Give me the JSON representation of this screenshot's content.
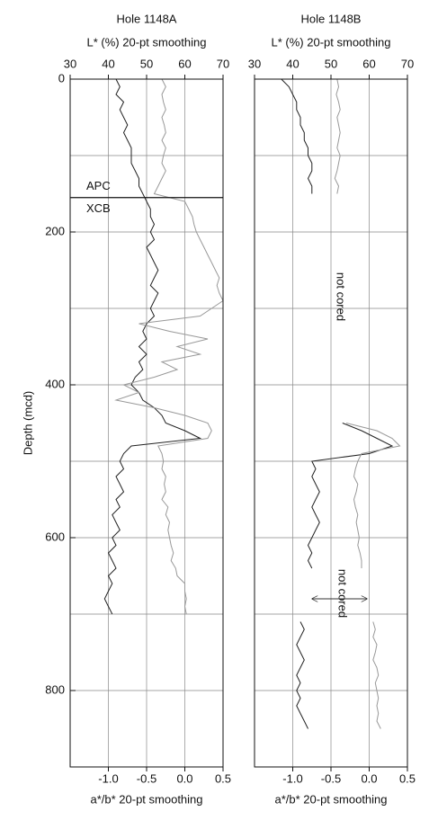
{
  "chart_data": [
    {
      "type": "line",
      "title": "Hole 1148A",
      "xlabel": "L* (%) 20-pt smoothing",
      "x2label": "a*/b* 20-pt smoothing",
      "ylabel": "Depth (mcd)",
      "xlim": [
        30,
        70
      ],
      "xticks": [
        30,
        40,
        50,
        60,
        70
      ],
      "x2lim": [
        -1.5,
        0.5
      ],
      "x2ticks": [
        {
          "value": -1,
          "label": "-1.0"
        },
        -0.5,
        {
          "value": 0,
          "label": "0.0"
        },
        0.5
      ],
      "ylim": [
        0,
        900
      ],
      "inverted": true,
      "yticks": [
        0,
        200,
        400,
        600,
        800
      ],
      "ygrid": [
        100,
        200,
        300,
        400,
        500,
        600,
        700,
        800
      ],
      "xgrid": [
        40,
        50,
        60
      ],
      "annotations": [
        "APC",
        "XCB"
      ],
      "boundary_depth": 155,
      "depth": [
        0,
        10,
        20,
        30,
        40,
        50,
        60,
        70,
        80,
        90,
        100,
        110,
        120,
        130,
        140,
        150,
        160,
        170,
        180,
        190,
        200,
        210,
        220,
        230,
        240,
        250,
        260,
        270,
        280,
        290,
        300,
        310,
        320,
        330,
        340,
        350,
        360,
        370,
        380,
        390,
        400,
        410,
        420,
        430,
        440,
        450,
        460,
        470,
        480,
        490,
        500,
        510,
        520,
        530,
        540,
        550,
        560,
        570,
        580,
        590,
        600,
        610,
        620,
        630,
        640,
        650,
        660,
        670,
        680,
        690,
        700
      ],
      "series": [
        {
          "color": "#222222",
          "axis": "x",
          "values": [
            42,
            43,
            42,
            44,
            43,
            44,
            45,
            44,
            45,
            46,
            46,
            46,
            47,
            48,
            48,
            49,
            50,
            51,
            51,
            52,
            51,
            52,
            50,
            51,
            52,
            53,
            52,
            51,
            53,
            52,
            51,
            52,
            50,
            49,
            50,
            48,
            50,
            48,
            49,
            47,
            46,
            48,
            49,
            52,
            54,
            55,
            60,
            64,
            46,
            44,
            43,
            44,
            42,
            43,
            44,
            42,
            43,
            41,
            42,
            43,
            41,
            42,
            40,
            41,
            42,
            40,
            41,
            40,
            39,
            40,
            41
          ]
        },
        {
          "color": "#999999",
          "axis": "x2",
          "values": [
            -0.3,
            -0.25,
            -0.3,
            -0.28,
            -0.25,
            -0.3,
            -0.27,
            -0.25,
            -0.3,
            -0.25,
            -0.28,
            -0.3,
            -0.25,
            -0.3,
            -0.35,
            -0.4,
            0.0,
            0.05,
            0.1,
            0.12,
            0.15,
            0.2,
            0.25,
            0.3,
            0.35,
            0.4,
            0.45,
            0.42,
            0.45,
            0.5,
            0.35,
            0.2,
            -0.6,
            -0.2,
            0.3,
            -0.1,
            0.2,
            -0.3,
            -0.1,
            -0.4,
            -0.8,
            -0.6,
            -0.9,
            -0.4,
            0.0,
            0.3,
            0.35,
            0.3,
            -0.35,
            -0.3,
            -0.28,
            -0.3,
            -0.25,
            -0.27,
            -0.25,
            -0.3,
            -0.22,
            -0.25,
            -0.2,
            -0.22,
            -0.2,
            -0.18,
            -0.15,
            -0.18,
            -0.12,
            -0.1,
            0.0,
            0.0,
            0.02,
            0.0,
            0.02
          ]
        }
      ]
    },
    {
      "type": "line",
      "title": "Hole 1148B",
      "xlabel": "L* (%) 20-pt smoothing",
      "x2label": "a*/b* 20-pt smoothing",
      "xlim": [
        30,
        70
      ],
      "xticks": [
        30,
        40,
        50,
        60,
        70
      ],
      "x2lim": [
        -1.5,
        0.5
      ],
      "x2ticks": [
        {
          "value": -1,
          "label": "-1.0"
        },
        -0.5,
        {
          "value": 0,
          "label": "0.0"
        },
        0.5
      ],
      "ylim": [
        0,
        900
      ],
      "inverted": true,
      "ygrid": [
        100,
        200,
        300,
        400,
        500,
        600,
        700,
        800
      ],
      "xgrid": [
        40,
        50,
        60
      ],
      "annotations": [
        "not cored",
        "not cored"
      ],
      "depth": [
        0,
        10,
        20,
        30,
        40,
        50,
        60,
        70,
        80,
        90,
        100,
        110,
        120,
        130,
        140,
        150,
        160,
        170,
        180,
        190,
        200,
        210,
        220,
        230,
        240,
        250,
        260,
        270,
        280,
        290,
        300,
        310,
        320,
        330,
        340,
        350,
        360,
        370,
        380,
        390,
        400,
        410,
        420,
        430,
        440,
        450,
        460,
        470,
        480,
        490,
        500,
        510,
        520,
        530,
        540,
        550,
        560,
        570,
        580,
        590,
        600,
        610,
        620,
        630,
        640,
        650,
        660,
        670,
        680,
        690,
        700,
        710,
        720,
        730,
        740,
        750,
        760,
        770,
        780,
        790,
        800,
        810,
        820,
        830,
        840,
        850
      ],
      "series": [
        {
          "color": "#222222",
          "axis": "x",
          "values": [
            37,
            39,
            40,
            41,
            41,
            42,
            42,
            43,
            43,
            44,
            44,
            45,
            45,
            44,
            45,
            45,
            null,
            null,
            null,
            null,
            null,
            null,
            null,
            null,
            null,
            null,
            null,
            null,
            null,
            null,
            null,
            null,
            null,
            null,
            null,
            null,
            null,
            null,
            null,
            null,
            null,
            null,
            null,
            null,
            null,
            53,
            58,
            62,
            66,
            60,
            45,
            46,
            45,
            46,
            47,
            46,
            45,
            46,
            47,
            46,
            45,
            44,
            45,
            44,
            45,
            null,
            null,
            null,
            null,
            null,
            null,
            42,
            43,
            42,
            41,
            42,
            43,
            42,
            41,
            42,
            41,
            42,
            41,
            42,
            43,
            44
          ]
        },
        {
          "color": "#999999",
          "axis": "x2",
          "values": [
            -0.42,
            -0.4,
            -0.43,
            -0.4,
            -0.38,
            -0.42,
            -0.4,
            -0.38,
            -0.4,
            -0.42,
            -0.38,
            -0.4,
            -0.42,
            -0.45,
            -0.4,
            -0.42,
            null,
            null,
            null,
            null,
            null,
            null,
            null,
            null,
            null,
            null,
            null,
            null,
            null,
            null,
            null,
            null,
            null,
            null,
            null,
            null,
            null,
            null,
            null,
            null,
            null,
            null,
            null,
            null,
            null,
            -0.3,
            0.1,
            0.3,
            0.4,
            -0.1,
            -0.15,
            -0.18,
            -0.2,
            -0.15,
            -0.17,
            -0.2,
            -0.18,
            -0.15,
            -0.17,
            -0.15,
            -0.13,
            -0.15,
            -0.12,
            -0.1,
            -0.1,
            null,
            null,
            null,
            null,
            null,
            null,
            0.05,
            0.08,
            0.05,
            0.1,
            0.08,
            0.05,
            0.1,
            0.12,
            0.08,
            0.1,
            0.12,
            0.1,
            0.12,
            0.1,
            0.15
          ]
        }
      ]
    }
  ]
}
